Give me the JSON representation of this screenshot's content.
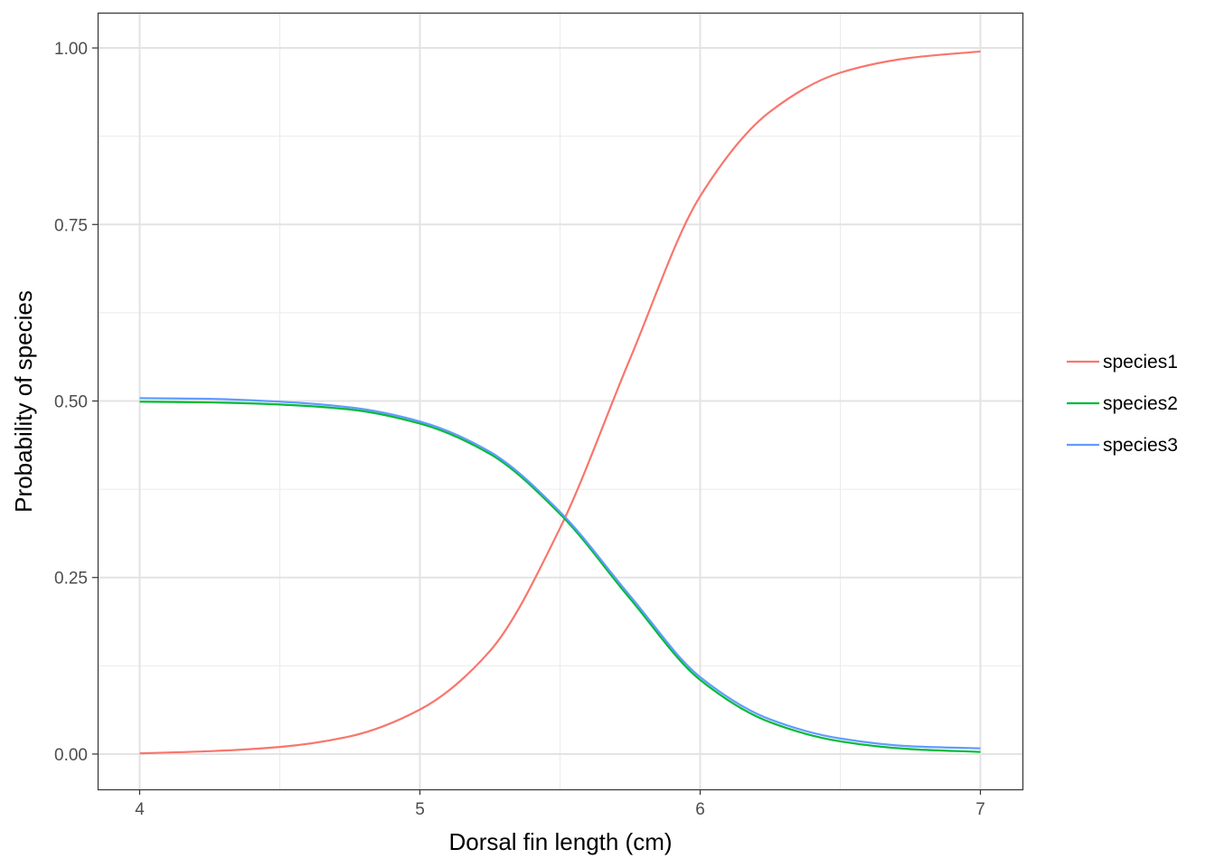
{
  "chart_data": {
    "type": "line",
    "title": "",
    "xlabel": "Dorsal fin length (cm)",
    "ylabel": "Probability of species",
    "xlim": [
      4,
      7
    ],
    "ylim": [
      0,
      1
    ],
    "x_ticks": [
      "4",
      "5",
      "6",
      "7"
    ],
    "y_ticks": [
      "0.00",
      "0.25",
      "0.50",
      "0.75",
      "1.00"
    ],
    "grid": true,
    "legend_position": "right",
    "series": [
      {
        "name": "species1",
        "color": "#f8766d",
        "x": [
          4.0,
          4.25,
          4.5,
          4.75,
          5.0,
          5.25,
          5.5,
          5.75,
          6.0,
          6.25,
          6.5,
          6.75,
          7.0
        ],
        "y": [
          0.001,
          0.004,
          0.01,
          0.025,
          0.063,
          0.146,
          0.32,
          0.56,
          0.79,
          0.91,
          0.965,
          0.986,
          0.995
        ]
      },
      {
        "name": "species2",
        "color": "#00ba38",
        "x": [
          4.0,
          4.25,
          4.5,
          4.75,
          5.0,
          5.25,
          5.5,
          5.75,
          6.0,
          6.25,
          6.5,
          6.75,
          7.0
        ],
        "y": [
          0.499,
          0.498,
          0.495,
          0.488,
          0.468,
          0.425,
          0.34,
          0.22,
          0.105,
          0.045,
          0.018,
          0.007,
          0.003
        ]
      },
      {
        "name": "species3",
        "color": "#619cff",
        "x": [
          4.0,
          4.25,
          4.5,
          4.75,
          5.0,
          5.25,
          5.5,
          5.75,
          6.0,
          6.25,
          6.5,
          6.75,
          7.0
        ],
        "y": [
          0.504,
          0.503,
          0.499,
          0.491,
          0.471,
          0.428,
          0.343,
          0.224,
          0.109,
          0.049,
          0.022,
          0.011,
          0.008
        ]
      }
    ]
  }
}
